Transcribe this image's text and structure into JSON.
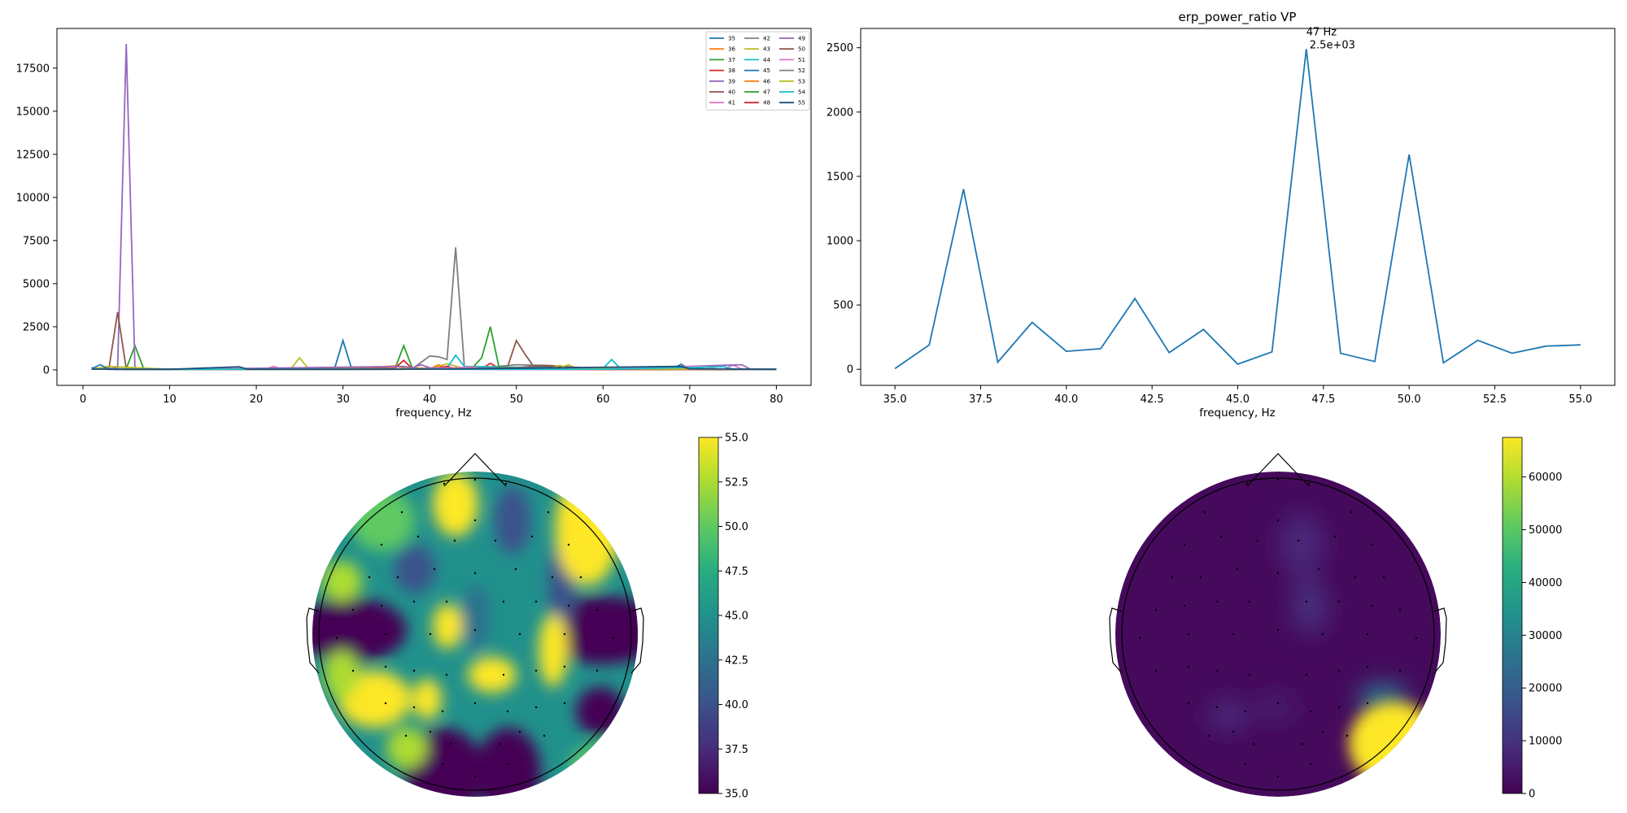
{
  "chart_data": [
    {
      "type": "line",
      "title": "",
      "xlabel": "frequency, Hz",
      "ylabel": "",
      "xlim": [
        -3,
        84
      ],
      "ylim": [
        -900,
        19800
      ],
      "xticks": [
        0,
        10,
        20,
        30,
        40,
        50,
        60,
        70,
        80
      ],
      "yticks": [
        0,
        2500,
        5000,
        7500,
        10000,
        12500,
        15000,
        17500
      ],
      "legend_location": "top-right",
      "legend_columns": 3,
      "series": [
        {
          "name": "35",
          "color": "#1f77b4",
          "points": [
            [
              1,
              120
            ],
            [
              2,
              60
            ],
            [
              3,
              40
            ],
            [
              10,
              30
            ],
            [
              20,
              40
            ],
            [
              29,
              30
            ],
            [
              30,
              1700
            ],
            [
              31,
              60
            ],
            [
              40,
              40
            ],
            [
              50,
              30
            ],
            [
              60,
              40
            ],
            [
              70,
              40
            ],
            [
              80,
              30
            ]
          ]
        },
        {
          "name": "36",
          "color": "#ff7f0e",
          "points": [
            [
              1,
              60
            ],
            [
              10,
              40
            ],
            [
              20,
              40
            ],
            [
              34,
              60
            ],
            [
              35,
              200
            ],
            [
              36,
              220
            ],
            [
              37,
              120
            ],
            [
              40,
              80
            ],
            [
              50,
              40
            ],
            [
              60,
              40
            ],
            [
              70,
              40
            ],
            [
              80,
              30
            ]
          ]
        },
        {
          "name": "37",
          "color": "#2ca02c",
          "points": [
            [
              1,
              40
            ],
            [
              5,
              60
            ],
            [
              6,
              1400
            ],
            [
              7,
              60
            ],
            [
              20,
              30
            ],
            [
              36,
              60
            ],
            [
              37,
              1400
            ],
            [
              38,
              100
            ],
            [
              40,
              60
            ],
            [
              50,
              40
            ],
            [
              60,
              40
            ],
            [
              70,
              40
            ],
            [
              80,
              30
            ]
          ]
        },
        {
          "name": "38",
          "color": "#d62728",
          "points": [
            [
              1,
              40
            ],
            [
              10,
              30
            ],
            [
              36,
              100
            ],
            [
              37,
              550
            ],
            [
              38,
              60
            ],
            [
              40,
              80
            ],
            [
              46,
              60
            ],
            [
              47,
              380
            ],
            [
              48,
              80
            ],
            [
              50,
              40
            ],
            [
              60,
              30
            ],
            [
              80,
              30
            ]
          ]
        },
        {
          "name": "39",
          "color": "#9467bd",
          "points": [
            [
              1,
              40
            ],
            [
              4,
              100
            ],
            [
              5,
              18900
            ],
            [
              6,
              80
            ],
            [
              10,
              30
            ],
            [
              20,
              30
            ],
            [
              40,
              40
            ],
            [
              60,
              30
            ],
            [
              80,
              30
            ]
          ]
        },
        {
          "name": "40",
          "color": "#8c564b",
          "points": [
            [
              1,
              40
            ],
            [
              3,
              80
            ],
            [
              4,
              3350
            ],
            [
              5,
              60
            ],
            [
              10,
              30
            ],
            [
              40,
              40
            ],
            [
              49,
              200
            ],
            [
              50,
              1700
            ],
            [
              51,
              900
            ],
            [
              52,
              200
            ],
            [
              60,
              40
            ],
            [
              80,
              30
            ]
          ]
        },
        {
          "name": "41",
          "color": "#e377c2",
          "points": [
            [
              1,
              40
            ],
            [
              10,
              30
            ],
            [
              21,
              40
            ],
            [
              22,
              200
            ],
            [
              23,
              40
            ],
            [
              40,
              40
            ],
            [
              60,
              30
            ],
            [
              74,
              40
            ],
            [
              75,
              280
            ],
            [
              76,
              40
            ],
            [
              80,
              30
            ]
          ]
        },
        {
          "name": "42",
          "color": "#7f7f7f",
          "points": [
            [
              1,
              40
            ],
            [
              10,
              30
            ],
            [
              38,
              60
            ],
            [
              40,
              800
            ],
            [
              41,
              760
            ],
            [
              42,
              600
            ],
            [
              43,
              7100
            ],
            [
              44,
              200
            ],
            [
              46,
              120
            ],
            [
              50,
              300
            ],
            [
              54,
              250
            ],
            [
              60,
              40
            ],
            [
              80,
              30
            ]
          ]
        },
        {
          "name": "43",
          "color": "#bcbd22",
          "points": [
            [
              1,
              40
            ],
            [
              3,
              200
            ],
            [
              10,
              30
            ],
            [
              24,
              60
            ],
            [
              25,
              700
            ],
            [
              26,
              60
            ],
            [
              40,
              60
            ],
            [
              42,
              350
            ],
            [
              44,
              80
            ],
            [
              55,
              80
            ],
            [
              56,
              300
            ],
            [
              57,
              60
            ],
            [
              80,
              30
            ]
          ]
        },
        {
          "name": "44",
          "color": "#17becf",
          "points": [
            [
              1,
              40
            ],
            [
              10,
              30
            ],
            [
              40,
              40
            ],
            [
              42,
              100
            ],
            [
              43,
              850
            ],
            [
              44,
              200
            ],
            [
              60,
              80
            ],
            [
              61,
              600
            ],
            [
              62,
              80
            ],
            [
              71,
              80
            ],
            [
              72,
              200
            ],
            [
              73,
              40
            ],
            [
              80,
              30
            ]
          ]
        },
        {
          "name": "45",
          "color": "#1f77b4",
          "points": [
            [
              1,
              60
            ],
            [
              2,
              300
            ],
            [
              3,
              40
            ],
            [
              10,
              30
            ],
            [
              40,
              40
            ],
            [
              60,
              40
            ],
            [
              68,
              60
            ],
            [
              69,
              320
            ],
            [
              70,
              60
            ],
            [
              80,
              30
            ]
          ]
        },
        {
          "name": "46",
          "color": "#ff7f0e",
          "points": [
            [
              1,
              40
            ],
            [
              10,
              30
            ],
            [
              40,
              40
            ],
            [
              41,
              300
            ],
            [
              42,
              60
            ],
            [
              60,
              30
            ],
            [
              80,
              30
            ]
          ]
        },
        {
          "name": "47",
          "color": "#2ca02c",
          "points": [
            [
              1,
              40
            ],
            [
              10,
              30
            ],
            [
              40,
              40
            ],
            [
              44,
              120
            ],
            [
              45,
              150
            ],
            [
              46,
              700
            ],
            [
              47,
              2500
            ],
            [
              48,
              150
            ],
            [
              60,
              40
            ],
            [
              80,
              30
            ]
          ]
        },
        {
          "name": "48",
          "color": "#d62728",
          "points": [
            [
              1,
              40
            ],
            [
              10,
              30
            ],
            [
              40,
              40
            ],
            [
              42,
              200
            ],
            [
              43,
              60
            ],
            [
              60,
              30
            ],
            [
              80,
              30
            ]
          ]
        },
        {
          "name": "49",
          "color": "#9467bd",
          "points": [
            [
              1,
              40
            ],
            [
              10,
              30
            ],
            [
              37,
              200
            ],
            [
              38,
              120
            ],
            [
              39,
              300
            ],
            [
              40,
              120
            ],
            [
              60,
              40
            ],
            [
              76,
              300
            ],
            [
              77,
              40
            ],
            [
              80,
              30
            ]
          ]
        },
        {
          "name": "50",
          "color": "#8c564b",
          "points": [
            [
              1,
              40
            ],
            [
              10,
              30
            ],
            [
              40,
              40
            ],
            [
              48,
              120
            ],
            [
              49,
              80
            ],
            [
              53,
              260
            ],
            [
              60,
              40
            ],
            [
              80,
              30
            ]
          ]
        },
        {
          "name": "51",
          "color": "#e377c2",
          "points": [
            [
              1,
              40
            ],
            [
              10,
              30
            ],
            [
              40,
              40
            ],
            [
              45,
              180
            ],
            [
              46,
              60
            ],
            [
              72,
              200
            ],
            [
              73,
              40
            ],
            [
              80,
              30
            ]
          ]
        },
        {
          "name": "52",
          "color": "#7f7f7f",
          "points": [
            [
              1,
              40
            ],
            [
              10,
              30
            ],
            [
              40,
              40
            ],
            [
              52,
              150
            ],
            [
              53,
              60
            ],
            [
              80,
              30
            ]
          ]
        },
        {
          "name": "53",
          "color": "#bcbd22",
          "points": [
            [
              1,
              40
            ],
            [
              10,
              30
            ],
            [
              40,
              40
            ],
            [
              54,
              100
            ],
            [
              55,
              260
            ],
            [
              56,
              80
            ],
            [
              80,
              30
            ]
          ]
        },
        {
          "name": "54",
          "color": "#17becf",
          "points": [
            [
              1,
              40
            ],
            [
              10,
              30
            ],
            [
              40,
              40
            ],
            [
              60,
              40
            ],
            [
              74,
              180
            ],
            [
              75,
              40
            ],
            [
              80,
              30
            ]
          ]
        },
        {
          "name": "55",
          "color": "#1f4e79",
          "points": [
            [
              1,
              40
            ],
            [
              10,
              30
            ],
            [
              18,
              180
            ],
            [
              19,
              40
            ],
            [
              40,
              40
            ],
            [
              69,
              200
            ],
            [
              70,
              60
            ],
            [
              80,
              30
            ]
          ]
        }
      ]
    },
    {
      "type": "line",
      "title": "erp_power_ratio VP",
      "xlabel": "frequency, Hz",
      "ylabel": "",
      "xlim": [
        34,
        56
      ],
      "ylim": [
        -125,
        2650
      ],
      "xticks": [
        "35.0",
        "37.5",
        "40.0",
        "42.5",
        "45.0",
        "47.5",
        "50.0",
        "52.5",
        "55.0"
      ],
      "yticks": [
        0,
        500,
        1000,
        1500,
        2000,
        2500
      ],
      "color": "#1f77b4",
      "x": [
        35,
        36,
        37,
        38,
        39,
        40,
        41,
        42,
        43,
        44,
        45,
        46,
        47,
        48,
        49,
        50,
        51,
        52,
        53,
        54,
        55
      ],
      "y": [
        5,
        190,
        1400,
        55,
        365,
        140,
        160,
        550,
        130,
        310,
        40,
        135,
        2490,
        125,
        60,
        1670,
        50,
        225,
        125,
        180,
        190
      ],
      "annotation": {
        "x": 47,
        "y": 2490,
        "line1": "47 Hz",
        "line2": "2.5e+03"
      }
    },
    {
      "type": "heatmap",
      "subtype": "topomap",
      "colormap": "viridis",
      "colorbar_ticks": [
        "35.0",
        "37.5",
        "40.0",
        "42.5",
        "45.0",
        "47.5",
        "50.0",
        "52.5",
        "55.0"
      ],
      "colorbar_range": [
        35,
        55
      ]
    },
    {
      "type": "heatmap",
      "subtype": "topomap",
      "colormap": "viridis",
      "colorbar_ticks": [
        "0",
        "10000",
        "20000",
        "30000",
        "40000",
        "50000",
        "60000"
      ],
      "colorbar_range": [
        0,
        67500
      ]
    }
  ]
}
